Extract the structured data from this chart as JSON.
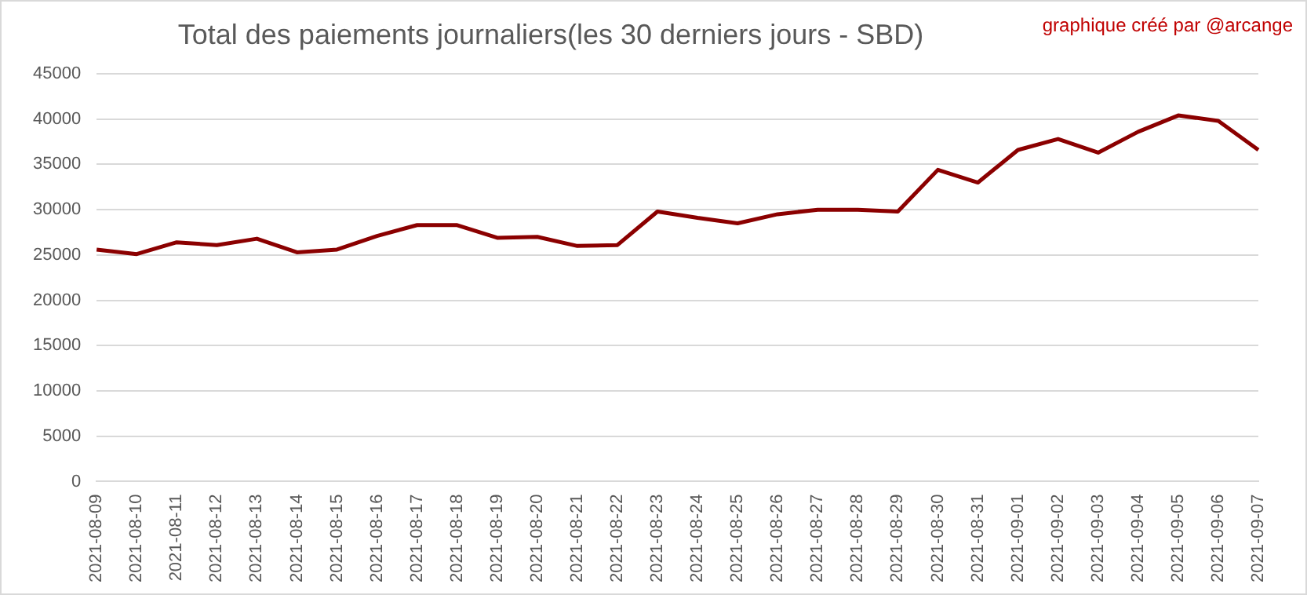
{
  "chart_data": {
    "type": "line",
    "title": "Total des paiements journaliers(les 30 derniers jours - SBD)",
    "annotations": [
      "graphique créé par @arcange"
    ],
    "categories": [
      "2021-08-09",
      "2021-08-10",
      "2021-08-11",
      "2021-08-12",
      "2021-08-13",
      "2021-08-14",
      "2021-08-15",
      "2021-08-16",
      "2021-08-17",
      "2021-08-18",
      "2021-08-19",
      "2021-08-20",
      "2021-08-21",
      "2021-08-22",
      "2021-08-23",
      "2021-08-24",
      "2021-08-25",
      "2021-08-26",
      "2021-08-27",
      "2021-08-28",
      "2021-08-29",
      "2021-08-30",
      "2021-08-31",
      "2021-09-01",
      "2021-09-02",
      "2021-09-03",
      "2021-09-04",
      "2021-09-05",
      "2021-09-06",
      "2021-09-07"
    ],
    "series": [
      {
        "color": "#8b0000",
        "values": [
          25600,
          25100,
          26400,
          26100,
          26800,
          25300,
          25600,
          27100,
          28300,
          28300,
          26900,
          27000,
          26000,
          26100,
          29800,
          29100,
          28500,
          29500,
          30000,
          30000,
          29800,
          34400,
          33000,
          36600,
          37800,
          36300,
          38600,
          40400,
          39800,
          36600
        ]
      }
    ],
    "ylim": [
      0,
      45000
    ],
    "yticks": [
      0,
      5000,
      10000,
      15000,
      20000,
      25000,
      30000,
      35000,
      40000,
      45000
    ],
    "grid": "y",
    "legend": false,
    "marker": "none",
    "line_style": "solid"
  }
}
